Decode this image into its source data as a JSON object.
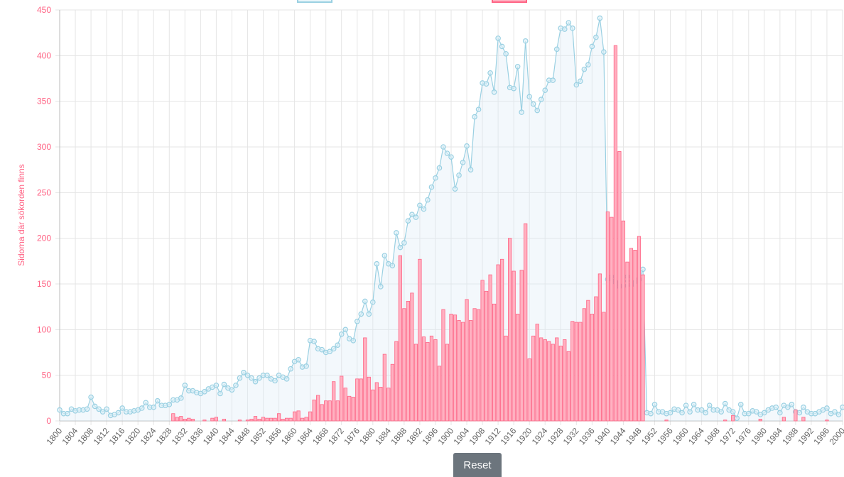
{
  "chart_data": {
    "type": "combo",
    "y_label": "Sidorna där sökorden finns",
    "x": [
      1800,
      1801,
      1802,
      1803,
      1804,
      1805,
      1806,
      1807,
      1808,
      1809,
      1810,
      1811,
      1812,
      1813,
      1814,
      1815,
      1816,
      1817,
      1818,
      1819,
      1820,
      1821,
      1822,
      1823,
      1824,
      1825,
      1826,
      1827,
      1828,
      1829,
      1830,
      1831,
      1832,
      1833,
      1834,
      1835,
      1836,
      1837,
      1838,
      1839,
      1840,
      1841,
      1842,
      1843,
      1844,
      1845,
      1846,
      1847,
      1848,
      1849,
      1850,
      1851,
      1852,
      1853,
      1854,
      1855,
      1856,
      1857,
      1858,
      1859,
      1860,
      1861,
      1862,
      1863,
      1864,
      1865,
      1866,
      1867,
      1868,
      1869,
      1870,
      1871,
      1872,
      1873,
      1874,
      1875,
      1876,
      1877,
      1878,
      1879,
      1880,
      1881,
      1882,
      1883,
      1884,
      1885,
      1886,
      1887,
      1888,
      1889,
      1890,
      1891,
      1892,
      1893,
      1894,
      1895,
      1896,
      1897,
      1898,
      1899,
      1900,
      1901,
      1902,
      1903,
      1904,
      1905,
      1906,
      1907,
      1908,
      1909,
      1910,
      1911,
      1912,
      1913,
      1914,
      1915,
      1916,
      1917,
      1918,
      1919,
      1920,
      1921,
      1922,
      1923,
      1924,
      1925,
      1926,
      1927,
      1928,
      1929,
      1930,
      1931,
      1932,
      1933,
      1934,
      1935,
      1936,
      1937,
      1938,
      1939,
      1940,
      1941,
      1942,
      1943,
      1944,
      1945,
      1946,
      1947,
      1948,
      1949,
      1950,
      1951,
      1952,
      1953,
      1954,
      1955,
      1956,
      1957,
      1958,
      1959,
      1960,
      1961,
      1962,
      1963,
      1964,
      1965,
      1966,
      1967,
      1968,
      1969,
      1970,
      1971,
      1972,
      1973,
      1974,
      1975,
      1976,
      1977,
      1978,
      1979,
      1980,
      1981,
      1982,
      1983,
      1984,
      1985,
      1986,
      1987,
      1988,
      1989,
      1990,
      1991,
      1992,
      1993,
      1994,
      1995,
      1996,
      1997,
      1998,
      1999,
      2000
    ],
    "series": [
      {
        "type": "line",
        "color": "#9ad0e2",
        "fill": "rgba(220,235,245,0.35)",
        "values": [
          12,
          8,
          8,
          13,
          11,
          12,
          12,
          13,
          26,
          16,
          13,
          10,
          13,
          6,
          7,
          9,
          14,
          10,
          10,
          11,
          12,
          14,
          20,
          15,
          15,
          22,
          17,
          17,
          18,
          23,
          23,
          25,
          39,
          33,
          33,
          31,
          30,
          32,
          35,
          37,
          39,
          30,
          40,
          36,
          34,
          39,
          47,
          53,
          50,
          47,
          43,
          47,
          50,
          50,
          46,
          44,
          50,
          48,
          46,
          57,
          65,
          67,
          59,
          60,
          88,
          87,
          79,
          78,
          75,
          76,
          79,
          83,
          95,
          100,
          90,
          88,
          109,
          117,
          131,
          117,
          130,
          172,
          147,
          181,
          172,
          170,
          206,
          190,
          195,
          219,
          226,
          223,
          236,
          232,
          242,
          256,
          266,
          277,
          300,
          293,
          289,
          254,
          269,
          283,
          301,
          275,
          333,
          341,
          370,
          369,
          381,
          360,
          419,
          410,
          402,
          365,
          364,
          388,
          338,
          416,
          355,
          347,
          340,
          352,
          362,
          373,
          373,
          407,
          430,
          429,
          436,
          430,
          368,
          372,
          385,
          390,
          410,
          420,
          441,
          404,
          155,
          158,
          152,
          147,
          148,
          158,
          149,
          152,
          155,
          166,
          9,
          8,
          18,
          10,
          10,
          8,
          9,
          13,
          12,
          9,
          17,
          10,
          18,
          12,
          12,
          9,
          17,
          12,
          12,
          10,
          19,
          12,
          10,
          3,
          18,
          8,
          8,
          11,
          10,
          7,
          9,
          12,
          14,
          15,
          9,
          17,
          15,
          18,
          10,
          9,
          15,
          10,
          8,
          8,
          10,
          12,
          14,
          8,
          10,
          7,
          15
        ]
      },
      {
        "type": "bar",
        "color": "#ffb1c1",
        "border": "#ff6384",
        "values": [
          0,
          0,
          0,
          0,
          0,
          0,
          0,
          0,
          0,
          0,
          0,
          0,
          0,
          0,
          0,
          0,
          0,
          0,
          0,
          0,
          0,
          0,
          0,
          0,
          0,
          0,
          0,
          0,
          0,
          8,
          4,
          5,
          2,
          3,
          2,
          0,
          0,
          1,
          0,
          3,
          4,
          0,
          2,
          0,
          0,
          0,
          1,
          0,
          1,
          2,
          5,
          2,
          4,
          3,
          3,
          3,
          8,
          2,
          3,
          3,
          10,
          11,
          3,
          4,
          10,
          23,
          28,
          18,
          22,
          22,
          43,
          22,
          49,
          36,
          27,
          26,
          46,
          46,
          91,
          48,
          34,
          42,
          37,
          73,
          36,
          62,
          87,
          181,
          123,
          131,
          140,
          84,
          177,
          92,
          86,
          93,
          89,
          60,
          122,
          84,
          117,
          116,
          110,
          108,
          133,
          110,
          123,
          122,
          154,
          142,
          160,
          128,
          171,
          177,
          93,
          200,
          164,
          117,
          165,
          216,
          68,
          93,
          106,
          91,
          89,
          87,
          84,
          91,
          82,
          89,
          76,
          109,
          108,
          108,
          123,
          132,
          117,
          136,
          161,
          119,
          229,
          223,
          411,
          295,
          219,
          174,
          189,
          187,
          202,
          160,
          0,
          0,
          0,
          0,
          0,
          1,
          0,
          0,
          0,
          0,
          0,
          0,
          0,
          0,
          0,
          0,
          0,
          0,
          0,
          0,
          1,
          0,
          6,
          0,
          0,
          0,
          0,
          0,
          0,
          2,
          0,
          0,
          0,
          0,
          0,
          4,
          0,
          0,
          12,
          0,
          4,
          0,
          0,
          0,
          0,
          0,
          1,
          0,
          0,
          0,
          0
        ]
      }
    ],
    "xlim": [
      1800,
      2000
    ],
    "xticks": [
      1800,
      1804,
      1808,
      1812,
      1816,
      1820,
      1824,
      1828,
      1832,
      1836,
      1840,
      1844,
      1848,
      1852,
      1856,
      1860,
      1864,
      1868,
      1872,
      1876,
      1880,
      1884,
      1888,
      1892,
      1896,
      1900,
      1904,
      1908,
      1912,
      1916,
      1920,
      1924,
      1928,
      1932,
      1936,
      1940,
      1944,
      1948,
      1952,
      1956,
      1960,
      1964,
      1968,
      1972,
      1976,
      1980,
      1984,
      1988,
      1992,
      1996,
      2000
    ],
    "ylim": [
      0,
      450
    ],
    "yticks": [
      0,
      50,
      100,
      150,
      200,
      250,
      300,
      350,
      400,
      450
    ],
    "grid": true,
    "reset_button": "Reset"
  }
}
